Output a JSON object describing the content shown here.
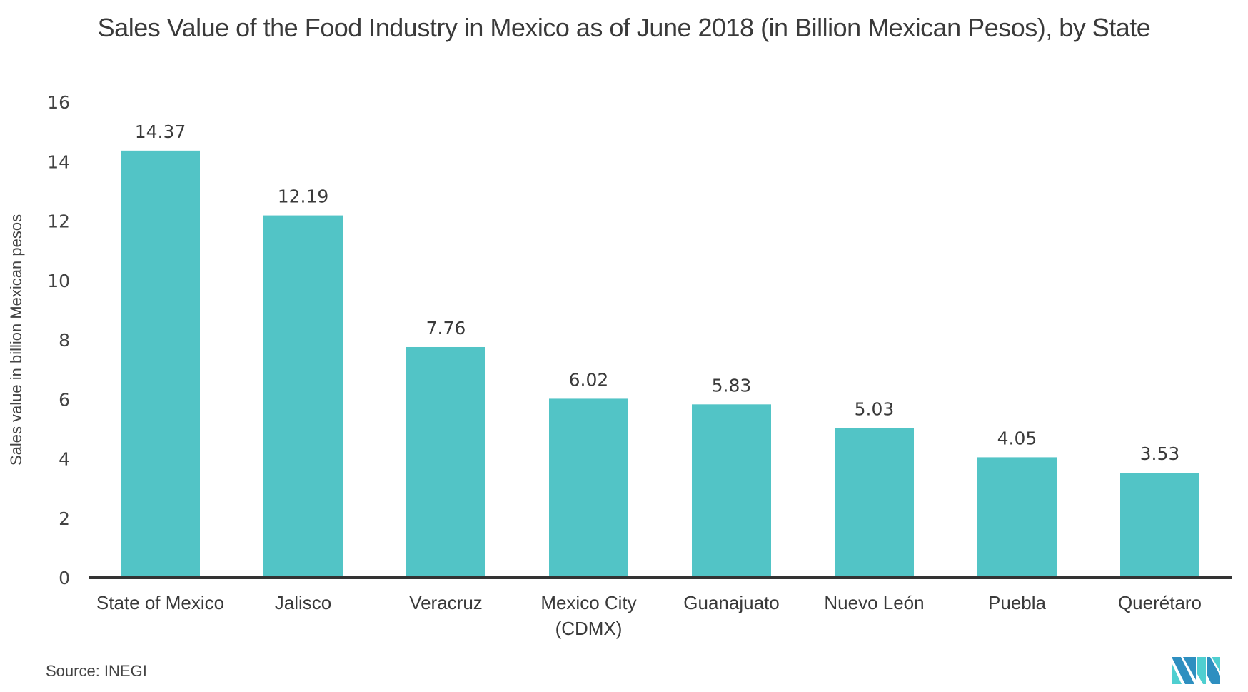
{
  "chart_data": {
    "type": "bar",
    "title": "Sales Value of the Food Industry in Mexico as of June 2018 (in Billion Mexican Pesos), by State",
    "xlabel": "",
    "ylabel": "Sales value in billion Mexican pesos",
    "ylim": [
      0,
      16
    ],
    "yticks": [
      0,
      2,
      4,
      6,
      8,
      10,
      12,
      14,
      16
    ],
    "grid": false,
    "legend": "none",
    "categories": [
      [
        "State of Mexico"
      ],
      [
        "Jalisco"
      ],
      [
        "Veracruz"
      ],
      [
        "Mexico City",
        "(CDMX)"
      ],
      [
        "Guanajuato"
      ],
      [
        "Nuevo León"
      ],
      [
        "Puebla"
      ],
      [
        "Querétaro"
      ]
    ],
    "values": [
      14.37,
      12.19,
      7.76,
      6.02,
      5.83,
      5.03,
      4.05,
      3.53
    ],
    "data_labels": [
      "14.37",
      "12.19",
      "7.76",
      "6.02",
      "5.83",
      "5.03",
      "4.05",
      "3.53"
    ],
    "bar_color": "#52c4c6",
    "axis_color": "#333333",
    "source": "Source: INEGI"
  },
  "logo": {
    "name": "brand-logo",
    "colors": [
      "#2e8fc0",
      "#4fcfd0"
    ]
  }
}
